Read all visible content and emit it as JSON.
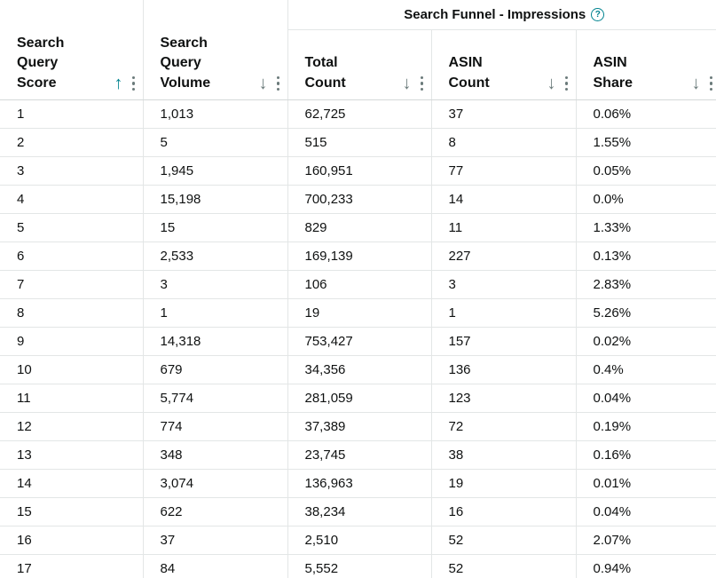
{
  "group_header": {
    "label": "Search Funnel - Impressions",
    "help_icon": "help-circle-icon"
  },
  "columns": [
    {
      "label": "Search Query Score",
      "sort": "ascending"
    },
    {
      "label": "Search Query Volume",
      "sort": "descending"
    },
    {
      "label": "Total Count",
      "sort": "descending"
    },
    {
      "label": "ASIN Count",
      "sort": "descending"
    },
    {
      "label": "ASIN Share",
      "sort": "descending"
    }
  ],
  "colors": {
    "accent": "#00838f",
    "icon": "#6b7b7b",
    "border": "#e3e6e6"
  },
  "rows": [
    [
      "1",
      "1,013",
      "62,725",
      "37",
      "0.06%"
    ],
    [
      "2",
      "5",
      "515",
      "8",
      "1.55%"
    ],
    [
      "3",
      "1,945",
      "160,951",
      "77",
      "0.05%"
    ],
    [
      "4",
      "15,198",
      "700,233",
      "14",
      "0.0%"
    ],
    [
      "5",
      "15",
      "829",
      "11",
      "1.33%"
    ],
    [
      "6",
      "2,533",
      "169,139",
      "227",
      "0.13%"
    ],
    [
      "7",
      "3",
      "106",
      "3",
      "2.83%"
    ],
    [
      "8",
      "1",
      "19",
      "1",
      "5.26%"
    ],
    [
      "9",
      "14,318",
      "753,427",
      "157",
      "0.02%"
    ],
    [
      "10",
      "679",
      "34,356",
      "136",
      "0.4%"
    ],
    [
      "11",
      "5,774",
      "281,059",
      "123",
      "0.04%"
    ],
    [
      "12",
      "774",
      "37,389",
      "72",
      "0.19%"
    ],
    [
      "13",
      "348",
      "23,745",
      "38",
      "0.16%"
    ],
    [
      "14",
      "3,074",
      "136,963",
      "19",
      "0.01%"
    ],
    [
      "15",
      "622",
      "38,234",
      "16",
      "0.04%"
    ],
    [
      "16",
      "37",
      "2,510",
      "52",
      "2.07%"
    ],
    [
      "17",
      "84",
      "5,552",
      "52",
      "0.94%"
    ]
  ]
}
